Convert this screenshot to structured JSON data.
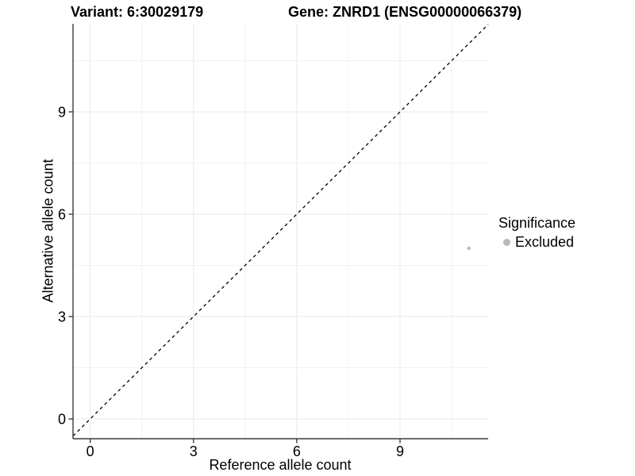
{
  "chart_data": {
    "type": "scatter",
    "title_left": "Variant: 6:30029179",
    "title_right": "Gene: ZNRD1 (ENSG00000066379)",
    "xlabel": "Reference allele count",
    "ylabel": "Alternative allele count",
    "xlim": [
      -0.5,
      11.56
    ],
    "ylim": [
      -0.58,
      11.58
    ],
    "xticks": [
      0,
      3,
      6,
      9
    ],
    "yticks": [
      0,
      3,
      6,
      9
    ],
    "xminor": [
      1.5,
      4.5,
      7.5,
      10.5
    ],
    "yminor": [
      1.5,
      4.5,
      7.5,
      10.5
    ],
    "grid": "major and minor gridlines on white panel, axis lines left and bottom only",
    "points": [
      {
        "x": 11,
        "y": 5,
        "series": "Excluded",
        "color": "#b9b9b9"
      }
    ],
    "identity_line": {
      "slope": 1,
      "intercept": 0,
      "style": "dashed",
      "color": "#000000"
    },
    "legend": {
      "title": "Significance",
      "position": "right",
      "entries": [
        {
          "label": "Excluded",
          "color": "#b9b9b9"
        }
      ]
    },
    "colors": {
      "background": "#ffffff",
      "grid_major": "#e8e8e8",
      "grid_minor": "#f2f2f2",
      "axis_line": "#3b3b3b",
      "tick_mark": "#3b3b3b",
      "text": "#000000",
      "point": "#b9b9b9"
    }
  }
}
